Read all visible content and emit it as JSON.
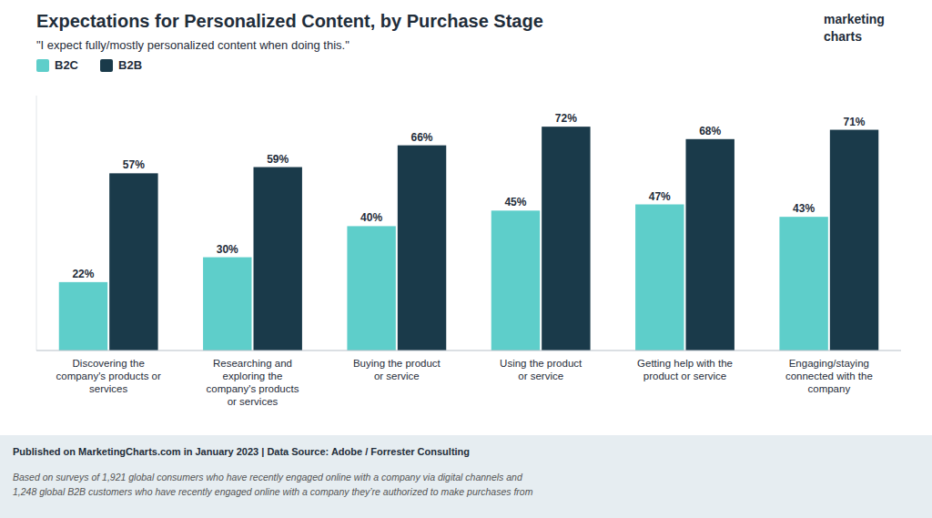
{
  "chart_data": {
    "type": "bar",
    "title": "Expectations for Personalized Content, by Purchase Stage",
    "subtitle": "\"I expect fully/mostly personalized content when doing this.\"",
    "categories": [
      "Discovering the\ncompany's products or\nservices",
      "Researching and\nexploring the\ncompany's products\nor services",
      "Buying the product\nor service",
      "Using the product\nor service",
      "Getting help with the\nproduct or service",
      "Engaging/staying\nconnected with the\ncompany"
    ],
    "series": [
      {
        "name": "B2C",
        "color": "#5ECECA",
        "values": [
          22,
          30,
          40,
          45,
          47,
          43
        ],
        "value_labels": [
          "22%",
          "30%",
          "40%",
          "45%",
          "47%",
          "43%"
        ]
      },
      {
        "name": "B2B",
        "color": "#1A3A4A",
        "values": [
          57,
          59,
          66,
          72,
          68,
          71
        ],
        "value_labels": [
          "57%",
          "59%",
          "66%",
          "72%",
          "68%",
          "71%"
        ]
      }
    ],
    "ylim": [
      0,
      82
    ],
    "grid": false,
    "legend": "top",
    "data_labels": true,
    "tick_labels": "x",
    "annotations": [
      "Published on MarketingCharts.com in January 2023 | Data Source: Adobe / Forrester Consulting",
      "Based on surveys of 1,921 global consumers who have recently engaged online with a company via digital channels and\n1,248 global B2B customers who have recently engaged online with a company they’re authorized to make purchases from",
      "marketing\ncharts"
    ]
  }
}
